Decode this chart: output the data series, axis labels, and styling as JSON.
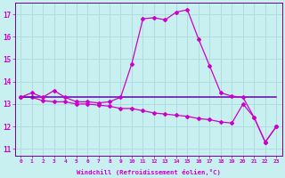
{
  "xlabel": "Windchill (Refroidissement éolien,°C)",
  "bg_color": "#c8f0f0",
  "grid_color": "#b0dce0",
  "line_color": "#cc00cc",
  "line_color_dark": "#6600aa",
  "x": [
    0,
    1,
    2,
    3,
    4,
    5,
    6,
    7,
    8,
    9,
    10,
    11,
    12,
    13,
    14,
    15,
    16,
    17,
    18,
    19,
    20,
    21,
    22,
    23
  ],
  "ylim": [
    10.7,
    17.5
  ],
  "yticks": [
    11,
    12,
    13,
    14,
    15,
    16,
    17
  ],
  "xlim": [
    -0.5,
    23.5
  ],
  "curve1": [
    13.3,
    13.5,
    13.3,
    13.6,
    13.3,
    13.1,
    13.1,
    13.05,
    13.1,
    13.3,
    14.8,
    16.8,
    16.85,
    16.75,
    17.1,
    17.2,
    15.9,
    14.7,
    13.5,
    13.35,
    13.3,
    12.4,
    11.3,
    12.0
  ],
  "curve2": [
    13.3,
    13.3,
    13.3,
    13.3,
    13.3,
    13.3,
    13.3,
    13.3,
    13.3,
    13.3,
    13.3,
    13.3,
    13.3,
    13.3,
    13.3,
    13.3,
    13.3,
    13.3,
    13.3,
    13.3,
    13.3,
    13.3,
    13.3,
    13.3
  ],
  "curve3": [
    13.3,
    13.3,
    13.15,
    13.1,
    13.1,
    13.0,
    13.0,
    12.95,
    12.9,
    12.8,
    12.8,
    12.7,
    12.6,
    12.55,
    12.5,
    12.45,
    12.35,
    12.3,
    12.2,
    12.15,
    13.0,
    12.4,
    11.3,
    12.0
  ]
}
